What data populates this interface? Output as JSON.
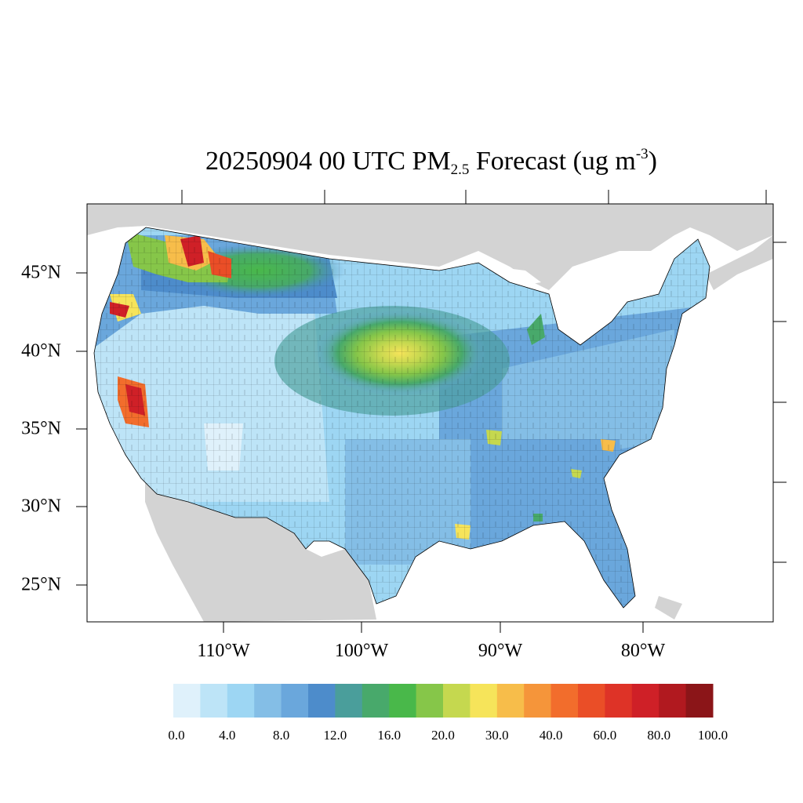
{
  "title": {
    "main": "20250904 00 UTC PM",
    "sub": "2.5",
    "rest": " Forecast (ug m",
    "sup": "-3",
    "close": ")"
  },
  "map": {
    "lat_labels": [
      "45°N",
      "40°N",
      "35°N",
      "30°N",
      "25°N"
    ],
    "lon_labels": [
      "110°W",
      "100°W",
      "90°W",
      "80°W"
    ],
    "colors": {
      "background_land": "#d3d3d3",
      "water": "#ffffff",
      "county_border": "#000000"
    }
  },
  "colorbar": {
    "colors": [
      "#dff1fb",
      "#bde4f7",
      "#9dd6f3",
      "#84bee6",
      "#6aa7dc",
      "#4d8ccb",
      "#4a9e9b",
      "#48a96b",
      "#49b84a",
      "#86c649",
      "#c5d84f",
      "#f6e45a",
      "#f7bd4a",
      "#f5953a",
      "#f26d2c",
      "#ea4e27",
      "#de3327",
      "#cf2027",
      "#b1191f",
      "#8b1518"
    ],
    "labels": [
      "0.0",
      "4.0",
      "8.0",
      "12.0",
      "16.0",
      "20.0",
      "30.0",
      "40.0",
      "60.0",
      "80.0",
      "100.0"
    ]
  }
}
